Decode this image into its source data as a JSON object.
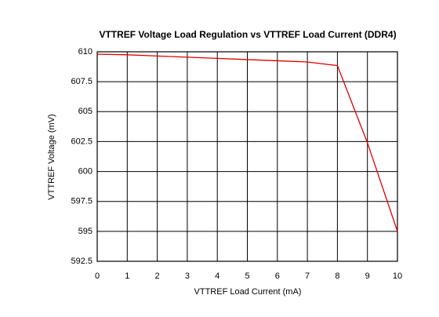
{
  "chart_data": {
    "type": "line",
    "title": "VTTREF Voltage Load Regulation vs VTTREF Load Current (DDR4)",
    "x_label": "VTTREF Load Current (mA)",
    "y_label": "VTTREF Voltage (mV)",
    "x": [
      0,
      1,
      2,
      3,
      4,
      5,
      6,
      7,
      8,
      9,
      10
    ],
    "series": [
      {
        "color": "#e00000",
        "values": [
          609.8,
          609.75,
          609.65,
          609.55,
          609.45,
          609.35,
          609.25,
          609.15,
          608.85,
          602.4,
          595
        ]
      }
    ],
    "xlim": [
      0,
      10
    ],
    "xticks": [
      0,
      1,
      2,
      3,
      4,
      5,
      6,
      7,
      8,
      9,
      10
    ],
    "ylim": [
      592.5,
      610
    ],
    "yticks": [
      592.5,
      595,
      597.5,
      600,
      602.5,
      605,
      607.5,
      610
    ],
    "grid": true
  }
}
